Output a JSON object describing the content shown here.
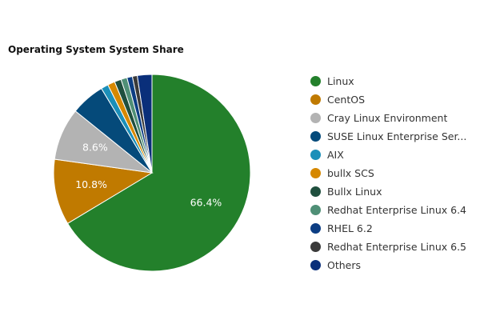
{
  "chart_data": {
    "type": "pie",
    "title": "Operating System System Share",
    "legend_position": "right",
    "slices": [
      {
        "name": "Linux",
        "value": 66.4,
        "color": "#23802b",
        "label": "66.4%"
      },
      {
        "name": "CentOS",
        "value": 10.8,
        "color": "#c07a00",
        "label": "10.8%"
      },
      {
        "name": "Cray Linux Environment",
        "value": 8.6,
        "color": "#b3b3b3",
        "label": "8.6%"
      },
      {
        "name": "SUSE Linux Enterprise Ser...",
        "value": 5.6,
        "color": "#054a7a",
        "label": ""
      },
      {
        "name": "AIX",
        "value": 1.2,
        "color": "#1b8fb9",
        "label": ""
      },
      {
        "name": "bullx SCS",
        "value": 1.2,
        "color": "#d68800",
        "label": ""
      },
      {
        "name": "Bullx Linux",
        "value": 1.1,
        "color": "#1f4f3e",
        "label": ""
      },
      {
        "name": "Redhat Enterprise Linux 6.4",
        "value": 1.0,
        "color": "#4f8f76",
        "label": ""
      },
      {
        "name": "RHEL 6.2",
        "value": 0.9,
        "color": "#0c3d83",
        "label": ""
      },
      {
        "name": "Redhat Enterprise Linux 6.5",
        "value": 0.8,
        "color": "#3a3a3a",
        "label": ""
      },
      {
        "name": "Others",
        "value": 2.4,
        "color": "#0a2f7a",
        "label": ""
      }
    ]
  }
}
